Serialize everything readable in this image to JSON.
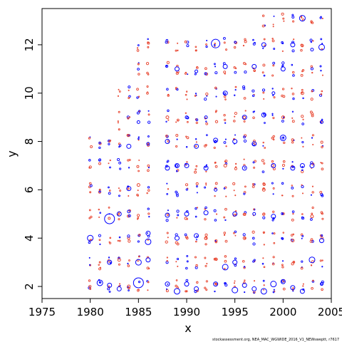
{
  "chart_data": {
    "type": "scatter",
    "title": "",
    "xlabel": "x",
    "ylabel": "y",
    "xlim": [
      1975,
      2005
    ],
    "ylim": [
      1.5,
      13.5
    ],
    "xticks": [
      1975,
      1980,
      1985,
      1990,
      1995,
      2000,
      2005
    ],
    "yticks": [
      2,
      4,
      6,
      8,
      10,
      12
    ],
    "grid": false,
    "legend": "none",
    "colors": {
      "positive": "#0000ff",
      "negative": "#e8432d"
    },
    "years": [
      1980,
      1981,
      1982,
      1983,
      1984,
      1985,
      1986,
      1988,
      1989,
      1990,
      1991,
      1992,
      1993,
      1994,
      1995,
      1996,
      1997,
      1998,
      1999,
      2000,
      2001,
      2002,
      2003,
      2004
    ],
    "ages": [
      2,
      3,
      4,
      5,
      6,
      7,
      8,
      9,
      10,
      11,
      12,
      13
    ],
    "bubbles": [
      {
        "x": 1980,
        "y": 4.0,
        "r": 4,
        "sign": 1
      },
      {
        "x": 1980,
        "y": 1.9,
        "r": 1,
        "sign": -1
      },
      {
        "x": 1980,
        "y": 5.9,
        "r": 1,
        "sign": -1
      },
      {
        "x": 1981,
        "y": 2.15,
        "r": 4,
        "sign": 1
      },
      {
        "x": 1981,
        "y": 3.0,
        "r": 1,
        "sign": -1
      },
      {
        "x": 1981,
        "y": 6.0,
        "r": 1,
        "sign": -1
      },
      {
        "x": 1982,
        "y": 4.8,
        "r": 7,
        "sign": 1
      },
      {
        "x": 1982,
        "y": 2.05,
        "r": 3,
        "sign": 1
      },
      {
        "x": 1982,
        "y": 3.0,
        "r": 3,
        "sign": 1
      },
      {
        "x": 1982,
        "y": 8.0,
        "r": 1,
        "sign": -1
      },
      {
        "x": 1983,
        "y": 5.0,
        "r": 3,
        "sign": 1
      },
      {
        "x": 1983,
        "y": 1.9,
        "r": 3,
        "sign": 1
      },
      {
        "x": 1983,
        "y": 3.1,
        "r": 2,
        "sign": -1
      },
      {
        "x": 1983,
        "y": 8.5,
        "r": 1,
        "sign": -1
      },
      {
        "x": 1984,
        "y": 6.05,
        "r": 3,
        "sign": 1
      },
      {
        "x": 1984,
        "y": 7.8,
        "r": 3,
        "sign": 1
      },
      {
        "x": 1984,
        "y": 5.1,
        "r": 2,
        "sign": 1
      },
      {
        "x": 1984,
        "y": 2.0,
        "r": 2,
        "sign": -1
      },
      {
        "x": 1984,
        "y": 9.8,
        "r": 1,
        "sign": -1
      },
      {
        "x": 1985,
        "y": 2.15,
        "r": 7,
        "sign": 1
      },
      {
        "x": 1985,
        "y": 3.0,
        "r": 4,
        "sign": 1
      },
      {
        "x": 1985,
        "y": 6.2,
        "r": 2,
        "sign": -1
      },
      {
        "x": 1985,
        "y": 8.8,
        "r": 2,
        "sign": 1
      },
      {
        "x": 1985,
        "y": 11.2,
        "r": 1,
        "sign": -1
      },
      {
        "x": 1986,
        "y": 3.85,
        "r": 4,
        "sign": 1
      },
      {
        "x": 1986,
        "y": 4.2,
        "r": 3,
        "sign": 1
      },
      {
        "x": 1986,
        "y": 3.1,
        "r": 3,
        "sign": 1
      },
      {
        "x": 1986,
        "y": 7.9,
        "r": 2,
        "sign": 1
      },
      {
        "x": 1986,
        "y": 11.9,
        "r": 1,
        "sign": -1
      },
      {
        "x": 1988,
        "y": 6.9,
        "r": 3,
        "sign": 1
      },
      {
        "x": 1988,
        "y": 8.0,
        "r": 3,
        "sign": 1
      },
      {
        "x": 1988,
        "y": 4.95,
        "r": 3,
        "sign": 1
      },
      {
        "x": 1988,
        "y": 2.1,
        "r": 3,
        "sign": 1
      },
      {
        "x": 1988,
        "y": 9.0,
        "r": 2,
        "sign": -1
      },
      {
        "x": 1989,
        "y": 11.0,
        "r": 3,
        "sign": 1
      },
      {
        "x": 1989,
        "y": 1.8,
        "r": 4,
        "sign": 1
      },
      {
        "x": 1989,
        "y": 7.0,
        "r": 3,
        "sign": 1
      },
      {
        "x": 1989,
        "y": 4.0,
        "r": 3,
        "sign": 1
      },
      {
        "x": 1990,
        "y": 9.0,
        "r": 2,
        "sign": 1
      },
      {
        "x": 1990,
        "y": 5.0,
        "r": 3,
        "sign": 1
      },
      {
        "x": 1990,
        "y": 2.1,
        "r": 3,
        "sign": 1
      },
      {
        "x": 1990,
        "y": 7.0,
        "r": 3,
        "sign": 1
      },
      {
        "x": 1991,
        "y": 7.8,
        "r": 3,
        "sign": 1
      },
      {
        "x": 1991,
        "y": 4.1,
        "r": 3,
        "sign": 1
      },
      {
        "x": 1991,
        "y": 10.9,
        "r": 2,
        "sign": 1
      },
      {
        "x": 1991,
        "y": 1.9,
        "r": 3,
        "sign": 1
      },
      {
        "x": 1992,
        "y": 6.9,
        "r": 3,
        "sign": 1
      },
      {
        "x": 1992,
        "y": 5.05,
        "r": 3,
        "sign": 1
      },
      {
        "x": 1992,
        "y": 9.0,
        "r": 2,
        "sign": 1
      },
      {
        "x": 1992,
        "y": 4.0,
        "r": 2,
        "sign": -1
      },
      {
        "x": 1993,
        "y": 12.05,
        "r": 6,
        "sign": 1
      },
      {
        "x": 1993,
        "y": 8.05,
        "r": 3,
        "sign": 1
      },
      {
        "x": 1993,
        "y": 2.1,
        "r": 3,
        "sign": 1
      },
      {
        "x": 1993,
        "y": 6.0,
        "r": 2,
        "sign": 1
      },
      {
        "x": 1994,
        "y": 11.1,
        "r": 3,
        "sign": 1
      },
      {
        "x": 1994,
        "y": 2.8,
        "r": 4,
        "sign": 1
      },
      {
        "x": 1994,
        "y": 10.0,
        "r": 3,
        "sign": 1
      },
      {
        "x": 1994,
        "y": 7.0,
        "r": 2,
        "sign": -1
      },
      {
        "x": 1995,
        "y": 1.85,
        "r": 4,
        "sign": 1
      },
      {
        "x": 1995,
        "y": 5.0,
        "r": 3,
        "sign": 1
      },
      {
        "x": 1995,
        "y": 8.0,
        "r": 3,
        "sign": 1
      },
      {
        "x": 1995,
        "y": 3.0,
        "r": 3,
        "sign": 1
      },
      {
        "x": 1996,
        "y": 9.0,
        "r": 3,
        "sign": 1
      },
      {
        "x": 1996,
        "y": 6.9,
        "r": 3,
        "sign": 1
      },
      {
        "x": 1996,
        "y": 2.05,
        "r": 3,
        "sign": 1
      },
      {
        "x": 1996,
        "y": 4.0,
        "r": 2,
        "sign": -1
      },
      {
        "x": 1997,
        "y": 7.9,
        "r": 3,
        "sign": 1
      },
      {
        "x": 1997,
        "y": 11.1,
        "r": 3,
        "sign": 1
      },
      {
        "x": 1997,
        "y": 5.0,
        "r": 2,
        "sign": 1
      },
      {
        "x": 1997,
        "y": 1.9,
        "r": 3,
        "sign": 1
      },
      {
        "x": 1998,
        "y": 12.0,
        "r": 3,
        "sign": 1
      },
      {
        "x": 1998,
        "y": 1.8,
        "r": 4,
        "sign": 1
      },
      {
        "x": 1998,
        "y": 9.1,
        "r": 3,
        "sign": 1
      },
      {
        "x": 1998,
        "y": 6.0,
        "r": 2,
        "sign": -1
      },
      {
        "x": 1999,
        "y": 2.1,
        "r": 4,
        "sign": 1
      },
      {
        "x": 1999,
        "y": 4.9,
        "r": 3,
        "sign": 1
      },
      {
        "x": 1999,
        "y": 7.0,
        "r": 3,
        "sign": 1
      },
      {
        "x": 1999,
        "y": 10.0,
        "r": 2,
        "sign": 1
      },
      {
        "x": 2000,
        "y": 8.15,
        "r": 4,
        "sign": 1
      },
      {
        "x": 2000,
        "y": 2.2,
        "r": 3,
        "sign": 1
      },
      {
        "x": 2000,
        "y": 11.0,
        "r": 3,
        "sign": 1
      },
      {
        "x": 2000,
        "y": 9.0,
        "r": 2,
        "sign": -1
      },
      {
        "x": 2001,
        "y": 6.9,
        "r": 3,
        "sign": 1
      },
      {
        "x": 2001,
        "y": 12.0,
        "r": 3,
        "sign": 1
      },
      {
        "x": 2001,
        "y": 1.95,
        "r": 3,
        "sign": 1
      },
      {
        "x": 2001,
        "y": 3.9,
        "r": 2,
        "sign": -1
      },
      {
        "x": 2002,
        "y": 13.1,
        "r": 4,
        "sign": 1
      },
      {
        "x": 2002,
        "y": 1.8,
        "r": 3,
        "sign": 1
      },
      {
        "x": 2002,
        "y": 7.0,
        "r": 3,
        "sign": 1
      },
      {
        "x": 2002,
        "y": 10.0,
        "r": 2,
        "sign": -1
      },
      {
        "x": 2003,
        "y": 3.1,
        "r": 4,
        "sign": 1
      },
      {
        "x": 2003,
        "y": 7.0,
        "r": 3,
        "sign": 1
      },
      {
        "x": 2003,
        "y": 11.8,
        "r": 2,
        "sign": 1
      },
      {
        "x": 2003,
        "y": 4.9,
        "r": 2,
        "sign": -1
      },
      {
        "x": 2004,
        "y": 11.9,
        "r": 4,
        "sign": 1
      },
      {
        "x": 2004,
        "y": 3.9,
        "r": 3,
        "sign": 1
      },
      {
        "x": 2004,
        "y": 8.8,
        "r": 2,
        "sign": 1
      },
      {
        "x": 2004,
        "y": 2.1,
        "r": 2,
        "sign": 1
      }
    ]
  },
  "footer": {
    "caption": "stockassessment.org, NEA_MAC_WGWIDE_2016_V1_NEWsweptt, r7617"
  }
}
